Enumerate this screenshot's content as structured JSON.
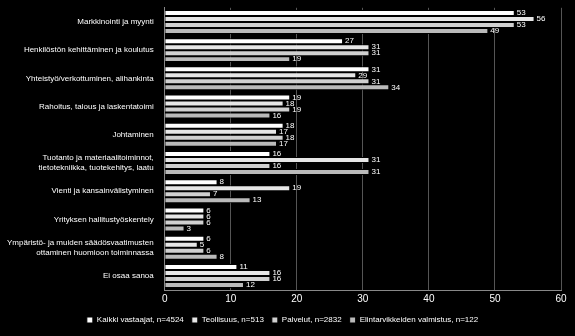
{
  "chart_data": {
    "type": "bar",
    "orientation": "horizontal",
    "categories": [
      "Markkinointi ja myynti",
      "Henkilöstön kehittäminen ja koulutus",
      "Yhteistyö/verkottuminen, alihankinta",
      "Rahoitus, talous ja laskentatoimi",
      "Johtaminen",
      "Tuotanto ja materiaalitoiminnot, tietotekniikka, tuotekehitys, laatu",
      "Vienti ja kansainvälistyminen",
      "Yrityksen hallitustyöskentely",
      "Ympäristö- ja muiden säädösvaatimusten ottaminen huomioon toiminnassa",
      "Ei osaa sanoa"
    ],
    "series": [
      {
        "name": "Kaikki vastaajat, n=4524",
        "color": "#ffffff",
        "values": [
          53,
          27,
          31,
          19,
          18,
          16,
          8,
          6,
          6,
          11
        ]
      },
      {
        "name": "Teollisuus, n=513",
        "color": "#e6e6e6",
        "values": [
          56,
          31,
          29,
          18,
          17,
          31,
          19,
          6,
          5,
          16
        ]
      },
      {
        "name": "Palvelut, n=2832",
        "color": "#d0d0d0",
        "values": [
          53,
          31,
          31,
          19,
          18,
          16,
          7,
          6,
          6,
          16
        ]
      },
      {
        "name": "Elintarvikkeiden valmistus, n=122",
        "color": "#bababa",
        "values": [
          49,
          19,
          34,
          16,
          17,
          31,
          13,
          3,
          8,
          12
        ]
      }
    ],
    "xlim": [
      0,
      60
    ],
    "xticks": [
      0,
      10,
      20,
      30,
      40,
      50,
      60
    ],
    "grid": true,
    "legend": "bottom",
    "data_labels": true
  }
}
